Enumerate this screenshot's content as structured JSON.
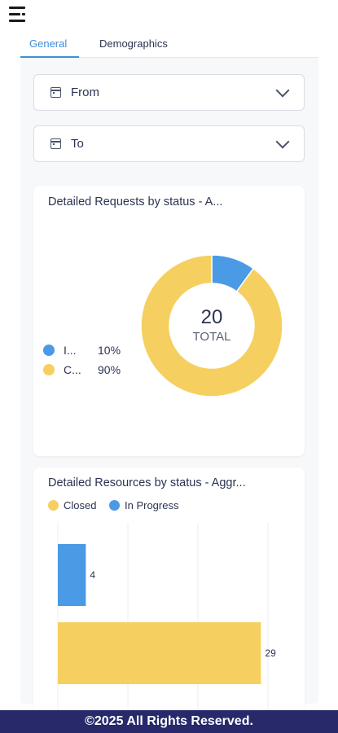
{
  "tabs": [
    {
      "label": "General",
      "active": true
    },
    {
      "label": "Demographics",
      "active": false
    }
  ],
  "filters": {
    "from_label": "From",
    "to_label": "To"
  },
  "requests_card": {
    "title": "Detailed Requests by status - A...",
    "legend": [
      {
        "name": "I...",
        "pct": "10%",
        "color": "#4a9ae6"
      },
      {
        "name": "C...",
        "pct": "90%",
        "color": "#f5d060"
      }
    ],
    "total_value": "20",
    "total_label": "TOTAL"
  },
  "resources_card": {
    "title": "Detailed Resources by status - Aggr...",
    "legend": [
      {
        "name": "Closed",
        "color": "#f5d060"
      },
      {
        "name": "In Progress",
        "color": "#4a9ae6"
      }
    ]
  },
  "chart_data": [
    {
      "type": "pie",
      "title": "Detailed Requests by status - A...",
      "center_value": 20,
      "center_label": "TOTAL",
      "slices": [
        {
          "label": "I...",
          "percent": 10,
          "color": "#4a9ae6"
        },
        {
          "label": "C...",
          "percent": 90,
          "color": "#f5d060"
        }
      ]
    },
    {
      "type": "bar",
      "orientation": "horizontal",
      "title": "Detailed Resources by status - Aggr...",
      "series": [
        {
          "name": "In Progress",
          "values": [
            4
          ],
          "color": "#4a9ae6"
        },
        {
          "name": "Closed",
          "values": [
            29
          ],
          "color": "#f5d060"
        }
      ],
      "xlim": [
        0,
        30
      ],
      "grid": true,
      "legend_position": "top-left"
    }
  ],
  "footer": {
    "text": "©2025 All Rights Reserved."
  }
}
